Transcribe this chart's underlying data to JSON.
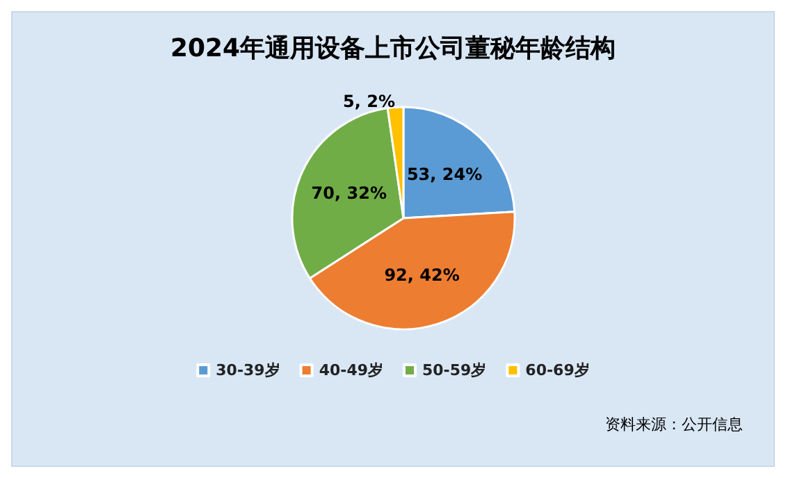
{
  "chart_data": {
    "type": "pie",
    "title": "2024年通用设备上市公司董秘年龄结构",
    "categories": [
      "30-39岁",
      "40-49岁",
      "50-59岁",
      "60-69岁"
    ],
    "values": [
      53,
      92,
      70,
      5
    ],
    "colors": [
      "#5b9bd5",
      "#ed7d31",
      "#70ad47",
      "#ffc000"
    ],
    "value_labels": [
      "53, 24%",
      "92, 42%",
      "70, 32%",
      "5, 2%"
    ],
    "legend": "bottom",
    "annotations": [
      "资料来源：公开信息"
    ]
  }
}
